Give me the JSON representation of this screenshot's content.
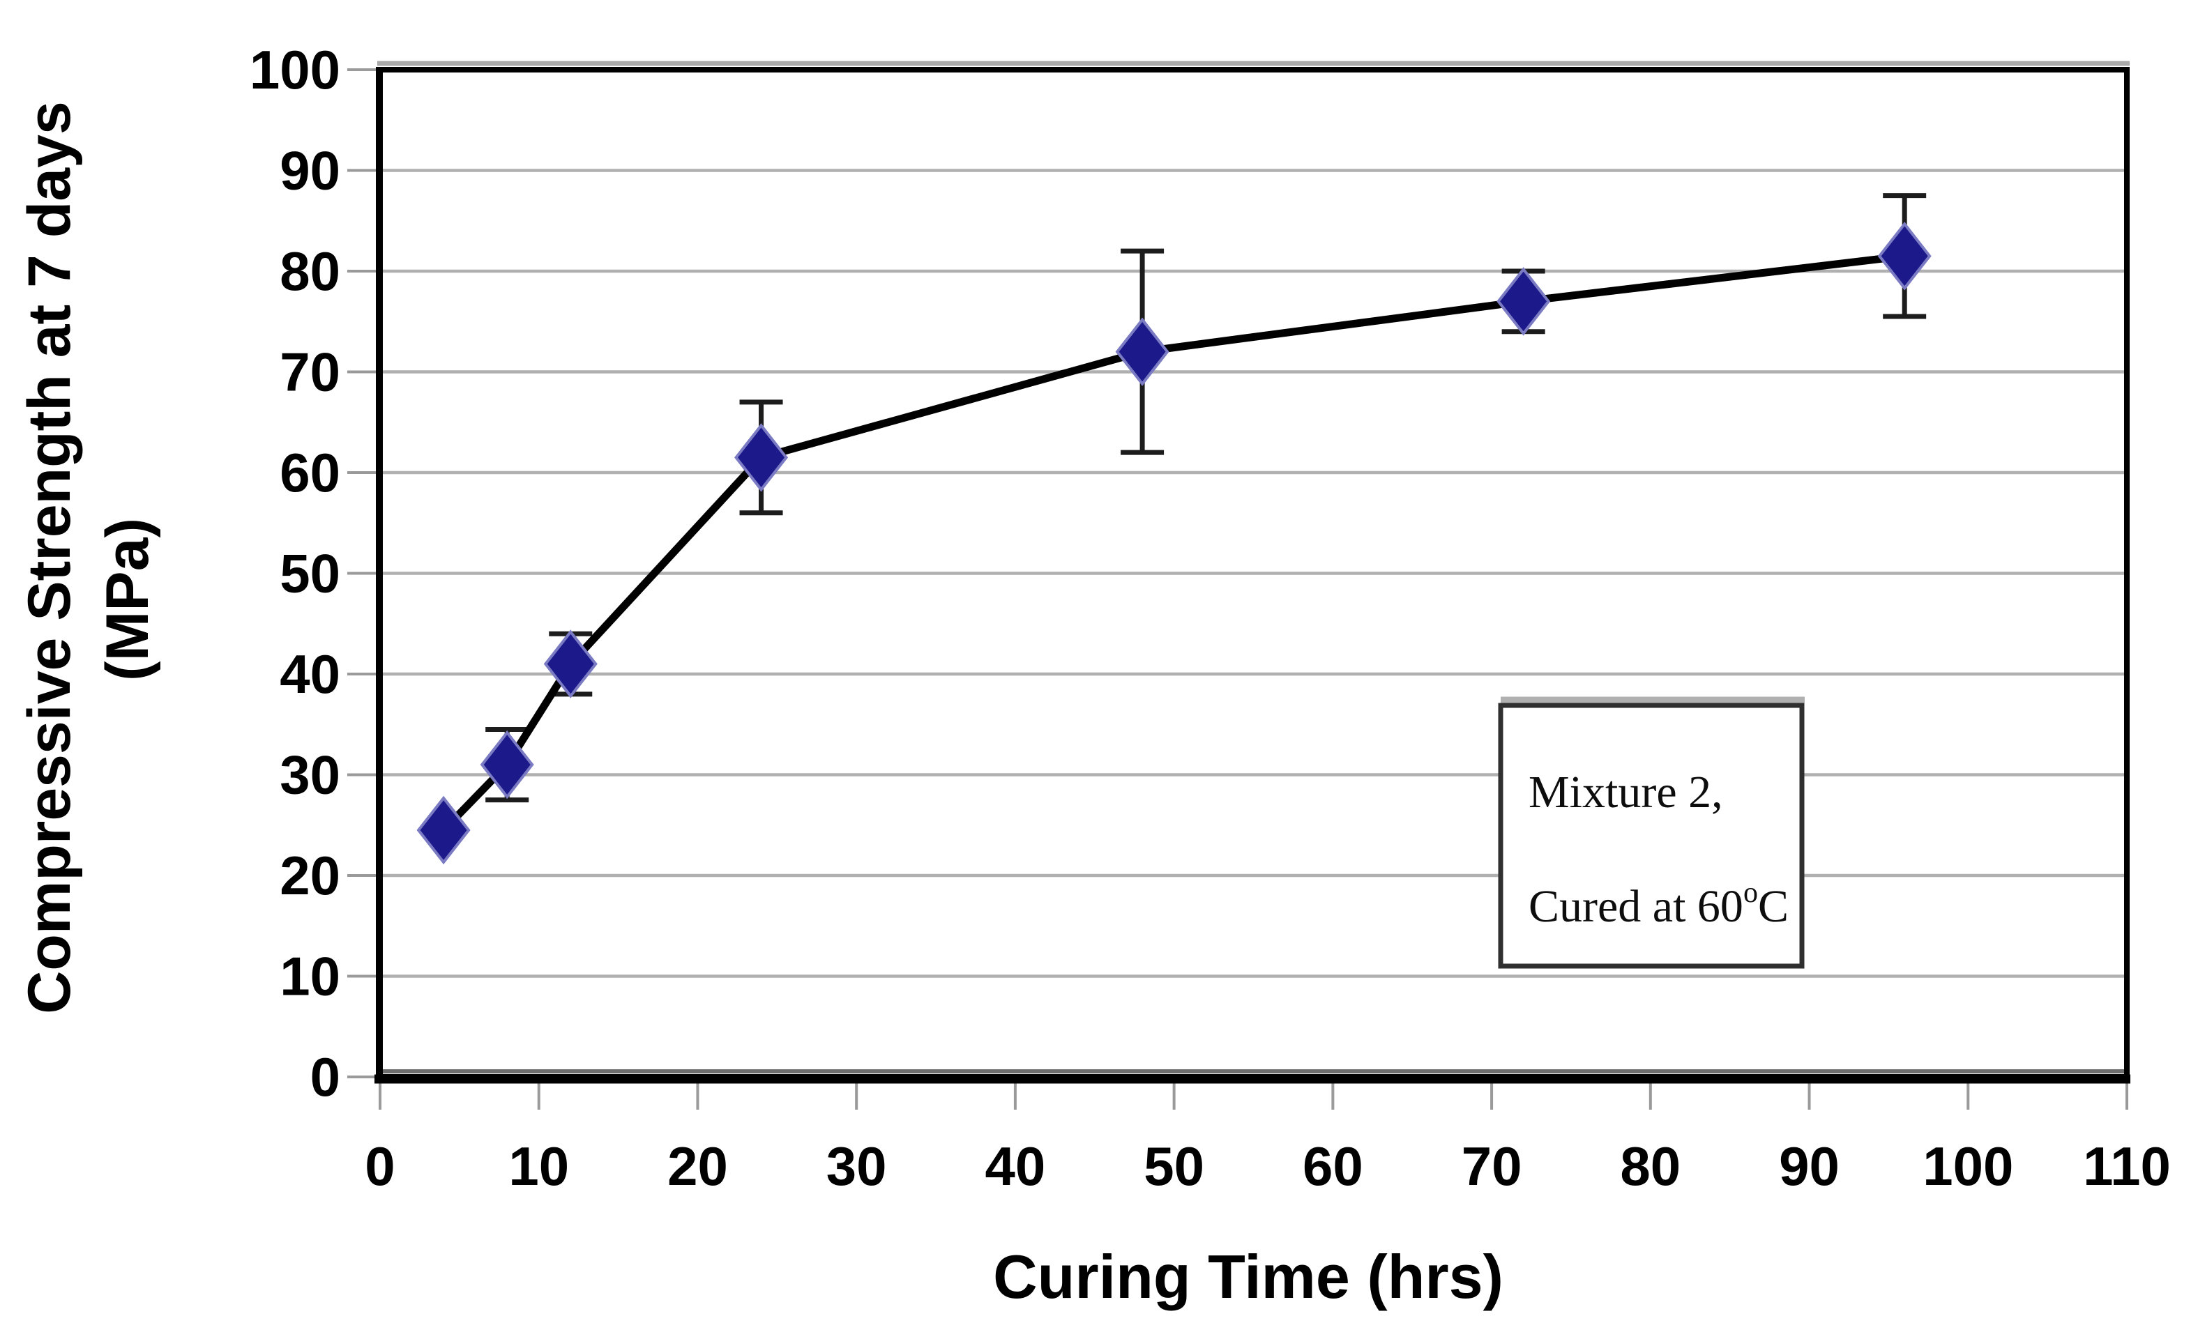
{
  "chart_data": {
    "type": "line",
    "title": "",
    "xlabel": "Curing Time (hrs)",
    "ylabel": "Compressive Strength at 7 days (MPa)",
    "ylabel_lines": [
      "Compressive Strength at 7 days",
      "(MPa)"
    ],
    "x": [
      4,
      8,
      12,
      24,
      48,
      72,
      96
    ],
    "y": [
      24.5,
      31,
      41,
      61.5,
      72,
      77,
      81.5
    ],
    "y_err": [
      0,
      3.5,
      3,
      5.5,
      10,
      3,
      6
    ],
    "xlim": [
      0,
      110
    ],
    "ylim": [
      0,
      100
    ],
    "x_ticks": [
      0,
      10,
      20,
      30,
      40,
      50,
      60,
      70,
      80,
      90,
      100,
      110
    ],
    "y_ticks": [
      0,
      10,
      20,
      30,
      40,
      50,
      60,
      70,
      80,
      90,
      100
    ],
    "grid": "horizontal gray lines every 10 MPa",
    "marker": "navy filled diamond",
    "legend_position": "inside lower-right box",
    "legend": {
      "line1": "Mixture 2,",
      "line2_pre": "Cured at 60",
      "line2_sup": "o",
      "line2_post": "C"
    },
    "colors": {
      "marker": "#1c1a8a",
      "marker_edge": "#7b7bc4",
      "line": "#000000",
      "grid": "#b0b0b0",
      "outside_tick": "#9a9a9a",
      "error_bar": "#1c1c1c",
      "plot_border": "#000000",
      "legend_border": "#2f2f2f",
      "text": "#000000"
    }
  }
}
